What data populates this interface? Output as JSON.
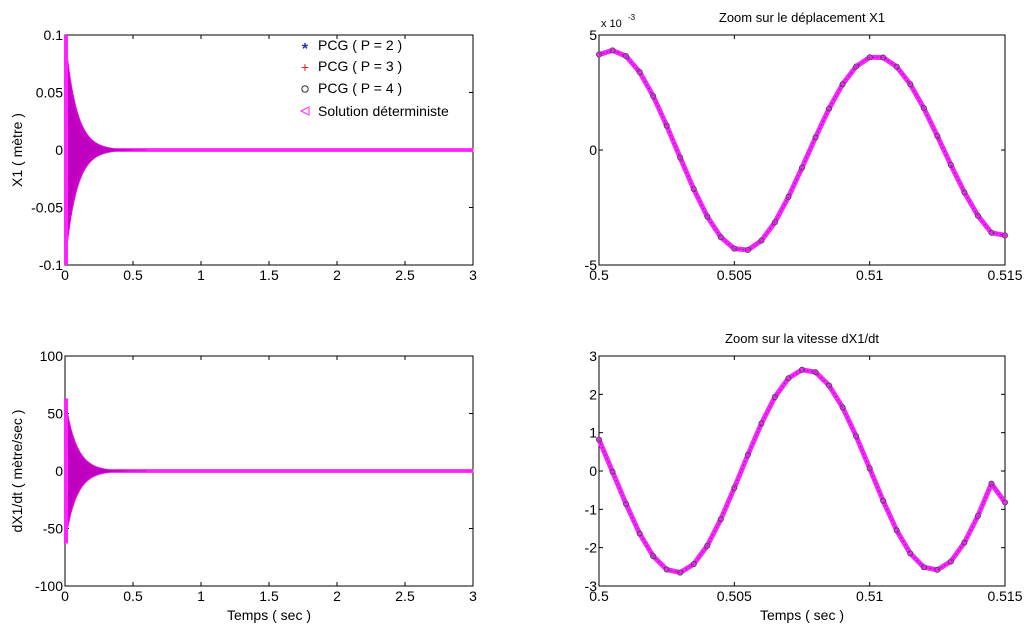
{
  "colors": {
    "background": "#ffffff",
    "axes": "#000000",
    "pcg_p2": "#2f2fa6",
    "pcg_p3": "#e02020",
    "pcg_p4": "#303030",
    "deterministic": "#ff22ff"
  },
  "chart_data": [
    {
      "type": "line",
      "title": "",
      "xlabel": "",
      "ylabel": "X1 ( mètre )",
      "xlim": [
        0,
        3
      ],
      "ylim": [
        -0.1,
        0.1
      ],
      "xticks": [
        "0",
        "0.5",
        "1",
        "1.5",
        "2",
        "2.5",
        "3"
      ],
      "yticks": [
        "-0.1",
        "-0.05",
        "0",
        "0.05",
        "0.1"
      ],
      "grid": false,
      "legend_position": "top-right",
      "envelope": {
        "amplitude": 0.1,
        "decay_rate": 12.2,
        "frequency_hz": 200
      },
      "series": [
        {
          "name": "PCG ( P = 2 )",
          "marker": "*",
          "color": "#2f2fa6"
        },
        {
          "name": "PCG ( P = 3 )",
          "marker": "+",
          "color": "#e02020"
        },
        {
          "name": "PCG ( P = 4 )",
          "marker": "o",
          "color": "#303030"
        },
        {
          "name": "Solution déterministe",
          "marker": "<",
          "color": "#ff22ff"
        }
      ]
    },
    {
      "type": "line",
      "title": "Zoom sur le déplacement X1",
      "xlabel": "",
      "ylabel": "",
      "xlim": [
        0.5,
        0.515
      ],
      "ylim": [
        -5,
        5
      ],
      "y_exponent_base": "x 10",
      "y_exponent_power": "-3",
      "xticks": [
        "0.5",
        "0.505",
        "0.51",
        "0.515"
      ],
      "yticks": [
        "-5",
        "0",
        "5"
      ],
      "grid": false,
      "x": [
        0.5,
        0.5005,
        0.501,
        0.5015,
        0.502,
        0.5025,
        0.503,
        0.5035,
        0.504,
        0.5045,
        0.505,
        0.5055,
        0.506,
        0.5065,
        0.507,
        0.5075,
        0.508,
        0.5085,
        0.509,
        0.5095,
        0.51,
        0.5105,
        0.511,
        0.5115,
        0.512,
        0.5125,
        0.513,
        0.5135,
        0.514,
        0.5145,
        0.515
      ],
      "values": [
        4.15,
        4.33,
        4.08,
        3.39,
        2.35,
        1.06,
        -0.33,
        -1.7,
        -2.89,
        -3.79,
        -4.29,
        -4.35,
        -3.94,
        -3.14,
        -2.04,
        -0.77,
        0.55,
        1.8,
        2.86,
        3.63,
        4.03,
        4.02,
        3.62,
        2.86,
        1.82,
        0.61,
        -0.65,
        -1.84,
        -2.86,
        -3.6,
        -3.71
      ]
    },
    {
      "type": "line",
      "title": "",
      "xlabel": "Temps ( sec )",
      "ylabel": "dX1/dt ( mètre/sec )",
      "xlim": [
        0,
        3
      ],
      "ylim": [
        -100,
        100
      ],
      "xticks": [
        "0",
        "0.5",
        "1",
        "1.5",
        "2",
        "2.5",
        "3"
      ],
      "yticks": [
        "-100",
        "-50",
        "0",
        "50",
        "100"
      ],
      "grid": false,
      "envelope": {
        "amplitude": 63,
        "decay_rate": 12.2,
        "frequency_hz": 200
      }
    },
    {
      "type": "line",
      "title": "Zoom sur la vitesse dX1/dt",
      "xlabel": "Temps ( sec )",
      "ylabel": "",
      "xlim": [
        0.5,
        0.515
      ],
      "ylim": [
        -3,
        3
      ],
      "xticks": [
        "0.5",
        "0.505",
        "0.51",
        "0.515"
      ],
      "yticks": [
        "-3",
        "-2",
        "-1",
        "0",
        "1",
        "2",
        "3"
      ],
      "grid": false,
      "x": [
        0.5,
        0.5005,
        0.501,
        0.5015,
        0.502,
        0.5025,
        0.503,
        0.5035,
        0.504,
        0.5045,
        0.505,
        0.5055,
        0.506,
        0.5065,
        0.507,
        0.5075,
        0.508,
        0.5085,
        0.509,
        0.5095,
        0.51,
        0.5105,
        0.511,
        0.5115,
        0.512,
        0.5125,
        0.513,
        0.5135,
        0.514,
        0.5145,
        0.515
      ],
      "values": [
        0.82,
        -0.02,
        -0.86,
        -1.63,
        -2.22,
        -2.57,
        -2.65,
        -2.43,
        -1.95,
        -1.26,
        -0.44,
        0.42,
        1.24,
        1.93,
        2.42,
        2.64,
        2.58,
        2.23,
        1.66,
        0.91,
        0.07,
        -0.78,
        -1.55,
        -2.15,
        -2.51,
        -2.58,
        -2.36,
        -1.87,
        -1.17,
        -0.33,
        -0.82
      ]
    }
  ]
}
